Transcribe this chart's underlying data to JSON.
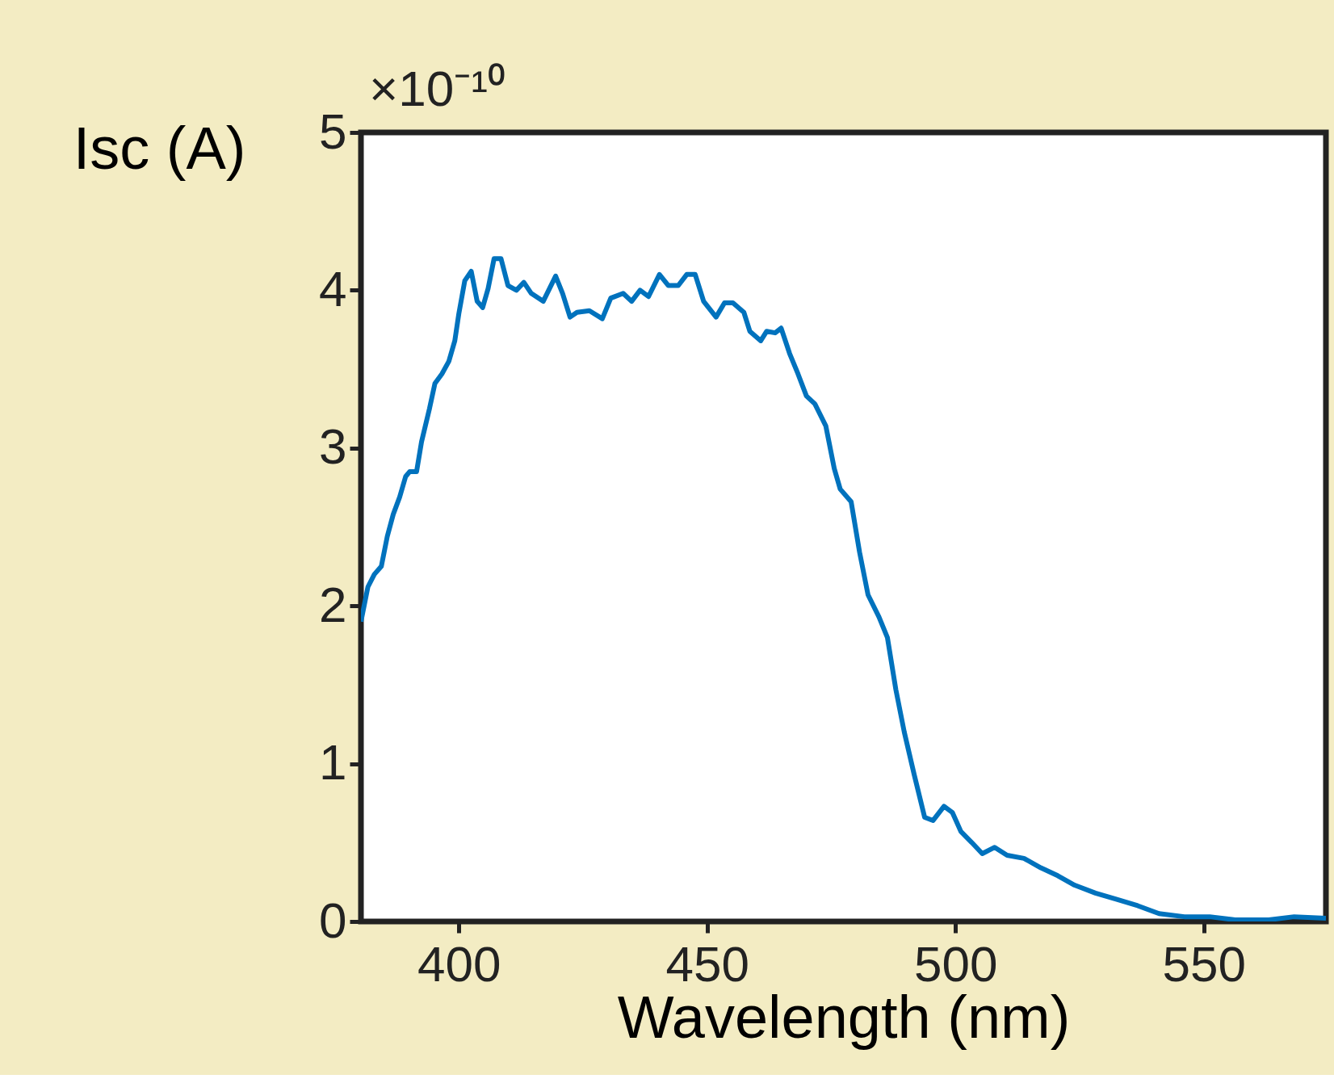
{
  "chart_data": {
    "type": "line",
    "xlabel": "Wavelength (nm)",
    "ylabel": "Isc (A)",
    "annotations": [
      "×10⁻¹⁰"
    ],
    "x": [
      380.3,
      381.7,
      383.0,
      384.4,
      385.6,
      386.8,
      388.1,
      389.3,
      390.1,
      391.5,
      392.5,
      394.1,
      395.2,
      396.6,
      398.0,
      399.2,
      400.0,
      401.2,
      402.5,
      403.7,
      404.8,
      405.9,
      407.1,
      408.5,
      409.9,
      411.6,
      413.1,
      414.6,
      417.0,
      419.5,
      420.9,
      422.4,
      423.8,
      426.3,
      428.9,
      430.6,
      433.1,
      434.8,
      436.5,
      438.2,
      440.4,
      442.2,
      444.2,
      445.9,
      447.6,
      449.3,
      451.8,
      453.5,
      455.2,
      457.4,
      458.6,
      460.8,
      462.0,
      463.7,
      464.9,
      466.6,
      468.3,
      470.0,
      471.7,
      473.9,
      475.6,
      476.8,
      479.0,
      480.7,
      482.4,
      484.6,
      486.3,
      488.0,
      489.7,
      491.7,
      493.8,
      495.5,
      497.7,
      499.4,
      501.1,
      503.3,
      505.4,
      507.9,
      510.4,
      513.8,
      517.2,
      520.6,
      524.0,
      528.2,
      532.5,
      536.7,
      541.0,
      546.1,
      551.2,
      556.3,
      563.1,
      568.2,
      574.6
    ],
    "series": [
      {
        "color": "#0072bd",
        "values": [
          1.9,
          2.12,
          2.2,
          2.25,
          2.44,
          2.58,
          2.69,
          2.82,
          2.85,
          2.85,
          3.04,
          3.25,
          3.41,
          3.47,
          3.55,
          3.68,
          3.85,
          4.06,
          4.12,
          3.93,
          3.89,
          4.01,
          4.2,
          4.2,
          4.03,
          4.0,
          4.05,
          3.98,
          3.93,
          4.09,
          3.98,
          3.83,
          3.86,
          3.87,
          3.82,
          3.95,
          3.98,
          3.93,
          4.0,
          3.96,
          4.1,
          4.03,
          4.03,
          4.1,
          4.1,
          3.93,
          3.83,
          3.92,
          3.92,
          3.86,
          3.74,
          3.68,
          3.74,
          3.73,
          3.76,
          3.6,
          3.47,
          3.33,
          3.28,
          3.14,
          2.87,
          2.74,
          2.66,
          2.34,
          2.07,
          1.93,
          1.8,
          1.47,
          1.2,
          0.93,
          0.66,
          0.64,
          0.73,
          0.69,
          0.57,
          0.5,
          0.43,
          0.47,
          0.42,
          0.4,
          0.34,
          0.29,
          0.23,
          0.18,
          0.14,
          0.1,
          0.05,
          0.03,
          0.03,
          0.01,
          0.01,
          0.03,
          0.02
        ]
      }
    ],
    "xlim": [
      380.3,
      574.6
    ],
    "xticks": [
      400,
      450,
      500,
      550
    ],
    "ylim": [
      0,
      5
    ],
    "yticks": [
      0,
      1,
      2,
      3,
      4,
      5
    ],
    "grid": false,
    "marker": "none",
    "line_style": "solid"
  }
}
